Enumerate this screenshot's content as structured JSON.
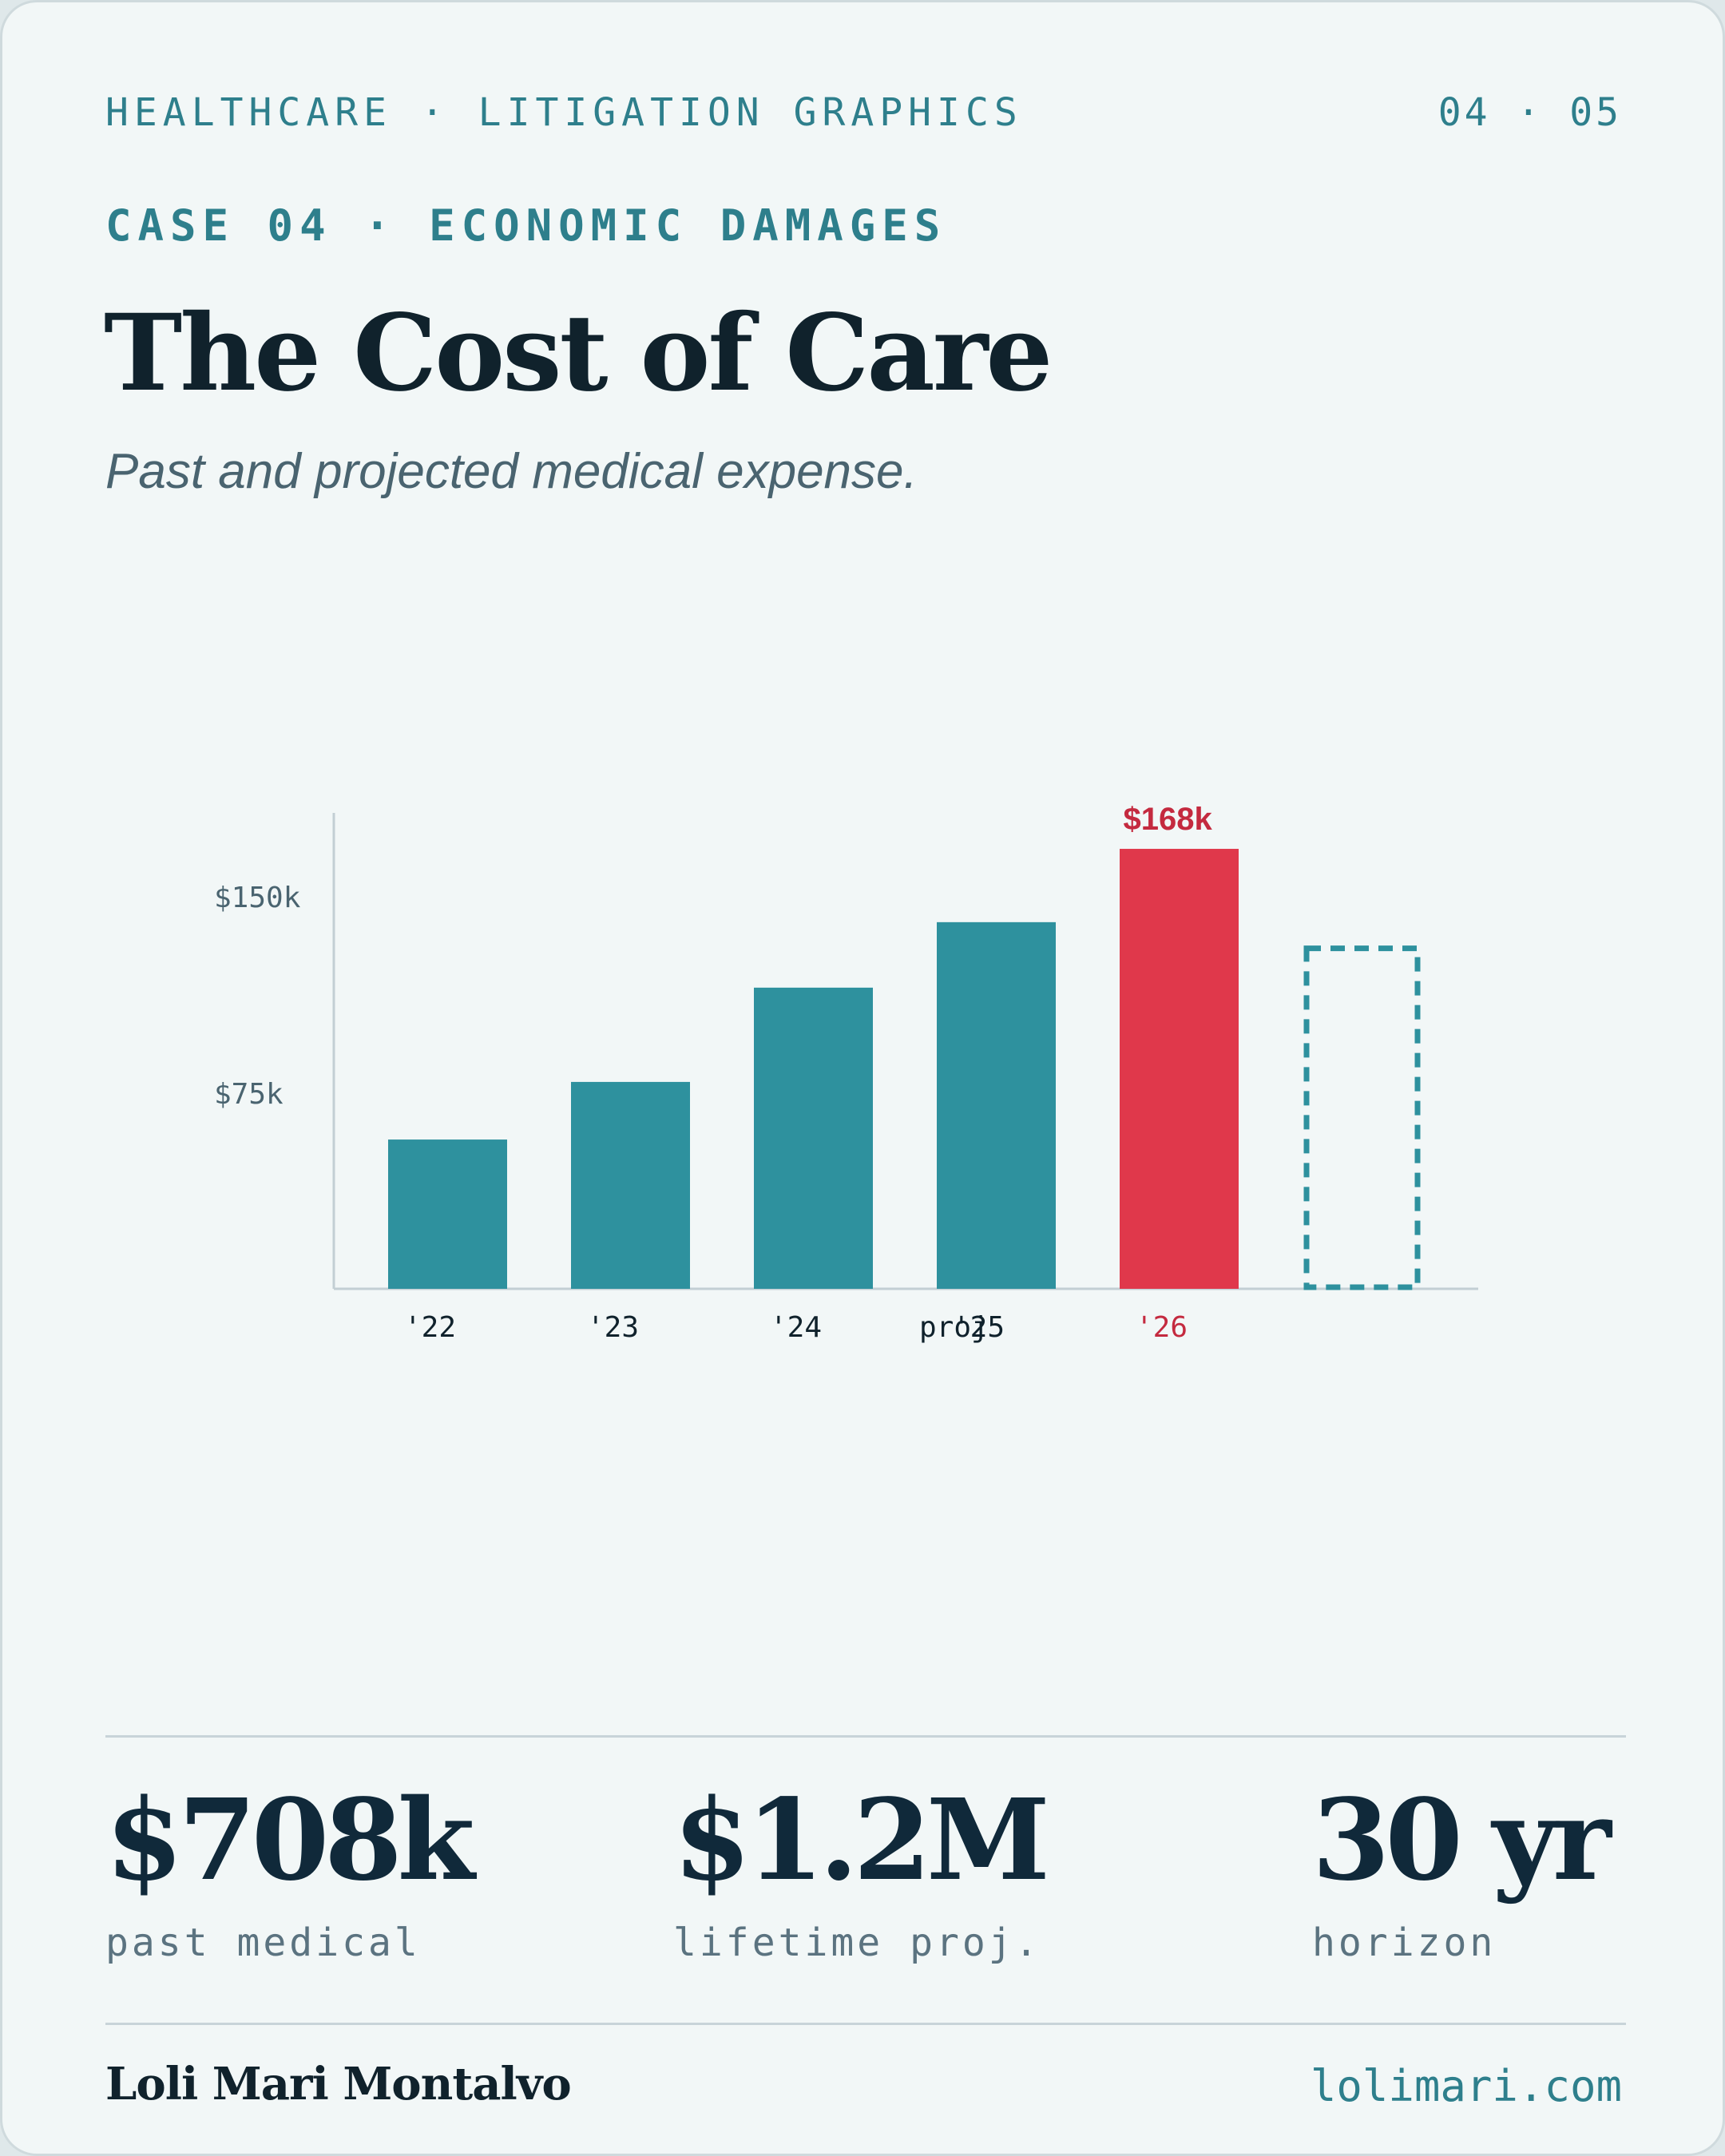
{
  "header": {
    "kicker": "HEALTHCARE · LITIGATION GRAPHICS",
    "page": "04 · 05",
    "case_label": "CASE 04 · ECONOMIC DAMAGES",
    "title": "The Cost of Care",
    "subtitle": "Past and projected medical expense."
  },
  "colors": {
    "accent": "#2e919e",
    "highlight": "#e0384b",
    "highlight_text": "#c42a3f",
    "ink": "#10222c",
    "axis_text": "#4a6470"
  },
  "chart_data": {
    "type": "bar",
    "title": "",
    "xlabel": "",
    "ylabel": "",
    "categories": [
      "'22",
      "'23",
      "'24",
      "'25",
      "'26",
      "proj"
    ],
    "values": [
      57,
      79,
      115,
      140,
      168,
      130
    ],
    "highlight": "'26",
    "projected": "proj",
    "data_labels": {
      "'26": "$168k"
    },
    "y_ticks": [
      {
        "value": 75,
        "label": "$75k"
      },
      {
        "value": 150,
        "label": "$150k"
      }
    ],
    "ylim": [
      0,
      186
    ],
    "grid": false,
    "legend": "none"
  },
  "stats": [
    {
      "value": "$708k",
      "label": "past medical"
    },
    {
      "value": "$1.2M",
      "label": "lifetime proj."
    },
    {
      "value": "30 yr",
      "label": "horizon"
    }
  ],
  "footer": {
    "author": "Loli Mari Montalvo",
    "site": "lolimari.com"
  }
}
